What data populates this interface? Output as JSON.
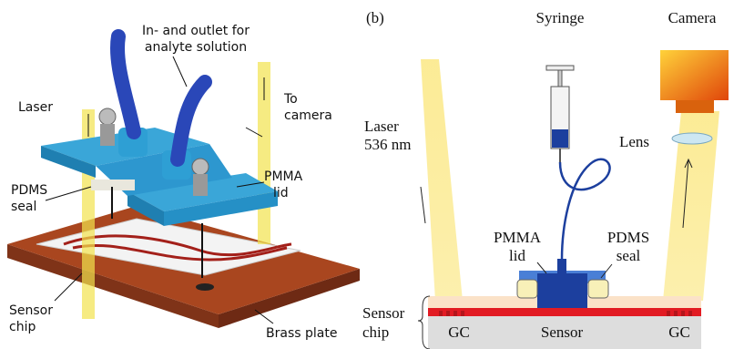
{
  "panel_a": {
    "inlet_label": [
      "In- and outlet for",
      "analyte solution"
    ],
    "laser_label": "Laser",
    "camera_label": [
      "To",
      "camera"
    ],
    "pdms_label": [
      "PDMS",
      "seal"
    ],
    "pmma_label": [
      "PMMA",
      "lid"
    ],
    "chip_label": [
      "Sensor",
      "chip"
    ],
    "plate_label": "Brass plate"
  },
  "panel_b": {
    "panel_letter": "(b)",
    "syringe_label": "Syringe",
    "camera_label": "Camera",
    "laser_label": [
      "Laser",
      "536 nm"
    ],
    "lens_label": "Lens",
    "pmma_label": [
      "PMMA",
      "lid"
    ],
    "pdms_label": [
      "PDMS",
      "seal"
    ],
    "chip_label": [
      "Sensor",
      "chip"
    ],
    "gc_left": "GC",
    "sensor_label": "Sensor",
    "gc_right": "GC"
  }
}
